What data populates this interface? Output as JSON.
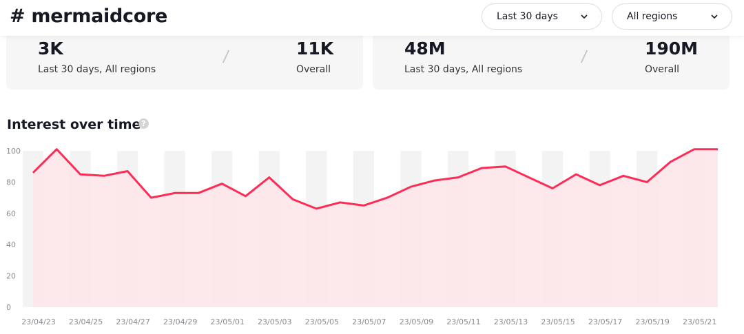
{
  "header": {
    "title": "# mermaidcore"
  },
  "filters": {
    "period": "Last 30 days",
    "region": "All regions"
  },
  "stats": {
    "posts": {
      "recent_value": "3K",
      "recent_label": "Last 30 days, All regions",
      "overall_value": "11K",
      "overall_label": "Overall"
    },
    "views": {
      "recent_value": "48M",
      "recent_label": "Last 30 days, All regions",
      "overall_value": "190M",
      "overall_label": "Overall"
    }
  },
  "section": {
    "title": "Interest over time",
    "help": "?"
  },
  "colors": {
    "line": "#fe2c55",
    "area": "#fde4e8",
    "stripe": "#f3f3f3"
  },
  "chart_data": {
    "type": "area",
    "title": "Interest over time",
    "ylim": [
      0,
      100
    ],
    "yticks": [
      0,
      20,
      40,
      60,
      80,
      100
    ],
    "x": [
      "23/04/23",
      "23/04/24",
      "23/04/25",
      "23/04/26",
      "23/04/27",
      "23/04/28",
      "23/04/29",
      "23/04/30",
      "23/05/01",
      "23/05/02",
      "23/05/03",
      "23/05/04",
      "23/05/05",
      "23/05/06",
      "23/05/07",
      "23/05/08",
      "23/05/09",
      "23/05/10",
      "23/05/11",
      "23/05/12",
      "23/05/13",
      "23/05/14",
      "23/05/15",
      "23/05/16",
      "23/05/17",
      "23/05/18",
      "23/05/19",
      "23/05/20",
      "23/05/21",
      "23/05/22"
    ],
    "values": [
      86,
      101,
      85,
      84,
      87,
      70,
      73,
      73,
      79,
      71,
      83,
      69,
      63,
      67,
      65,
      70,
      77,
      81,
      83,
      89,
      90,
      83,
      76,
      85,
      78,
      84,
      80,
      93,
      101,
      101
    ],
    "xtick_labels": [
      "23/04/23",
      "23/04/25",
      "23/04/27",
      "23/04/29",
      "23/05/01",
      "23/05/03",
      "23/05/05",
      "23/05/07",
      "23/05/09",
      "23/05/11",
      "23/05/13",
      "23/05/15",
      "23/05/17",
      "23/05/19",
      "23/05/21"
    ],
    "xtick_every": 2
  }
}
